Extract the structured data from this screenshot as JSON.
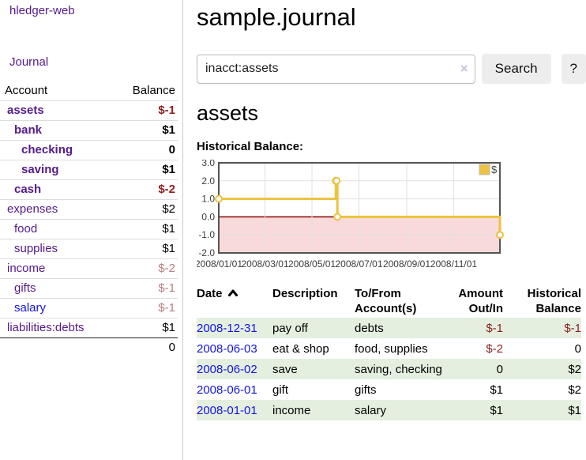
{
  "colors": {
    "purple": "#551a8b",
    "link_blue": "#1414e0",
    "negative_strong": "#8f1d1d",
    "negative_soft": "#b97e7e",
    "stripe_green": "#e4efdf",
    "button_bg": "#ededed"
  },
  "sidebar": {
    "brand": "hledger-web",
    "journal_link": "Journal",
    "accounts_table": {
      "headers": [
        "Account",
        "Balance"
      ],
      "rows": [
        {
          "name": "assets",
          "indent": 0,
          "bold": true,
          "balance": "$-1",
          "balance_style": "neg-strong"
        },
        {
          "name": "bank",
          "indent": 1,
          "bold": true,
          "balance": "$1",
          "balance_style": "normal"
        },
        {
          "name": "checking",
          "indent": 2,
          "bold": true,
          "balance": "0",
          "balance_style": "normal"
        },
        {
          "name": "saving",
          "indent": 2,
          "bold": true,
          "balance": "$1",
          "balance_style": "normal"
        },
        {
          "name": "cash",
          "indent": 1,
          "bold": true,
          "balance": "$-2",
          "balance_style": "neg-strong"
        },
        {
          "name": "expenses",
          "indent": 0,
          "bold": false,
          "balance": "$2",
          "balance_style": "normal"
        },
        {
          "name": "food",
          "indent": 1,
          "bold": false,
          "balance": "$1",
          "balance_style": "normal"
        },
        {
          "name": "supplies",
          "indent": 1,
          "bold": false,
          "balance": "$1",
          "balance_style": "normal"
        },
        {
          "name": "income",
          "indent": 0,
          "bold": false,
          "balance": "$-2",
          "balance_style": "neg-soft"
        },
        {
          "name": "gifts",
          "indent": 1,
          "bold": false,
          "balance": "$-1",
          "balance_style": "neg-soft"
        },
        {
          "name": "salary",
          "indent": 1,
          "bold": false,
          "balance": "$-1",
          "balance_style": "neg-soft",
          "link_color": "blue"
        },
        {
          "name": "liabilities:debts",
          "indent": 0,
          "bold": false,
          "balance": "$1",
          "balance_style": "normal"
        }
      ],
      "total": "0"
    }
  },
  "main": {
    "title": "sample.journal",
    "search": {
      "value": "inacct:assets",
      "clear_icon": "×",
      "button_label": "Search",
      "help_label": "?"
    },
    "account_heading": "assets",
    "chart_label": "Historical Balance:",
    "register_table": {
      "headers": [
        {
          "line1": "Date",
          "line2": "",
          "align": "left",
          "sort": "asc"
        },
        {
          "line1": "Description",
          "line2": "",
          "align": "left"
        },
        {
          "line1": "To/From",
          "line2": "Account(s)",
          "align": "left"
        },
        {
          "line1": "Amount",
          "line2": "Out/In",
          "align": "right"
        },
        {
          "line1": "Historical",
          "line2": "Balance",
          "align": "right"
        }
      ],
      "rows": [
        {
          "date": "2008-12-31",
          "description": "pay off",
          "accounts": "debts",
          "amount": "$-1",
          "amount_neg": true,
          "balance": "$-1",
          "balance_neg": true,
          "striped": true
        },
        {
          "date": "2008-06-03",
          "description": "eat & shop",
          "accounts": "food, supplies",
          "amount": "$-2",
          "amount_neg": true,
          "balance": "0",
          "balance_neg": false,
          "striped": false
        },
        {
          "date": "2008-06-02",
          "description": "save",
          "accounts": "saving, checking",
          "amount": "0",
          "amount_neg": false,
          "balance": "$2",
          "balance_neg": false,
          "striped": true
        },
        {
          "date": "2008-06-01",
          "description": "gift",
          "accounts": "gifts",
          "amount": "$1",
          "amount_neg": false,
          "balance": "$2",
          "balance_neg": false,
          "striped": false
        },
        {
          "date": "2008-01-01",
          "description": "income",
          "accounts": "salary",
          "amount": "$1",
          "amount_neg": false,
          "balance": "$1",
          "balance_neg": false,
          "striped": true
        }
      ]
    }
  },
  "chart_data": {
    "type": "line",
    "title": "Historical Balance:",
    "step": true,
    "series": [
      {
        "name": "$",
        "color": "#edc240",
        "points": [
          {
            "date": "2008-01-01",
            "day": 0,
            "value": 1
          },
          {
            "date": "2008-06-01",
            "day": 152,
            "value": 2
          },
          {
            "date": "2008-06-02",
            "day": 153,
            "value": 2
          },
          {
            "date": "2008-06-03",
            "day": 154,
            "value": 0
          },
          {
            "date": "2008-12-31",
            "day": 365,
            "value": -1
          }
        ]
      }
    ],
    "x_ticks": [
      {
        "day": 0,
        "label": "2008/01/01"
      },
      {
        "day": 60,
        "label": "2008/03/01"
      },
      {
        "day": 121,
        "label": "2008/05/01"
      },
      {
        "day": 182,
        "label": "2008/07/01"
      },
      {
        "day": 244,
        "label": "2008/09/01"
      },
      {
        "day": 305,
        "label": "2008/11/01"
      }
    ],
    "y_ticks": [
      "3.0",
      "2.0",
      "1.0",
      "0.0",
      "-1.0",
      "-2.0"
    ],
    "ylim": [
      -2,
      3
    ],
    "xlim_days": [
      0,
      365
    ],
    "grid": true,
    "legend": {
      "label": "$",
      "position": "top-right"
    },
    "colors": {
      "negative_region": "#f9dada",
      "zero_line": "#8b0000",
      "grid_line": "#e0e0e0",
      "border": "#545454",
      "tick_text": "#3c3c3c",
      "marker_fill": "#ffffff",
      "legend_box_border": "#bbbbbb"
    }
  }
}
